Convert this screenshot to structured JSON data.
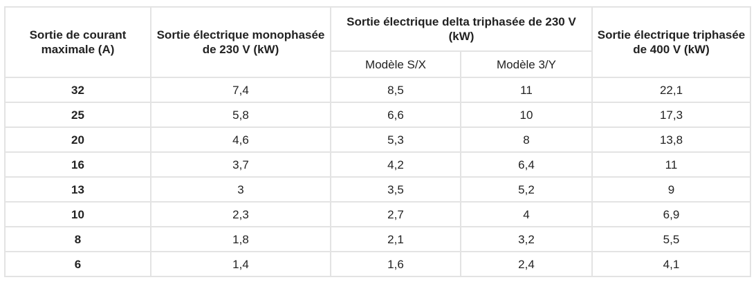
{
  "table": {
    "headers": {
      "col1": "Sortie de courant maximale (A)",
      "col2": "Sortie électrique monophasée de 230 V (kW)",
      "delta_group": "Sortie électrique delta triphasée de 230 V (kW)",
      "delta_sub1": "Modèle S/X",
      "delta_sub2": "Modèle 3/Y",
      "col5": "Sortie électrique triphasée de 400 V (kW)"
    },
    "rows": [
      [
        "32",
        "7,4",
        "8,5",
        "11",
        "22,1"
      ],
      [
        "25",
        "5,8",
        "6,6",
        "10",
        "17,3"
      ],
      [
        "20",
        "4,6",
        "5,3",
        "8",
        "13,8"
      ],
      [
        "16",
        "3,7",
        "4,2",
        "6,4",
        "11"
      ],
      [
        "13",
        "3",
        "3,5",
        "5,2",
        "9"
      ],
      [
        "10",
        "2,3",
        "2,7",
        "4",
        "6,9"
      ],
      [
        "8",
        "1,8",
        "2,1",
        "3,2",
        "5,5"
      ],
      [
        "6",
        "1,4",
        "1,6",
        "2,4",
        "4,1"
      ]
    ]
  }
}
